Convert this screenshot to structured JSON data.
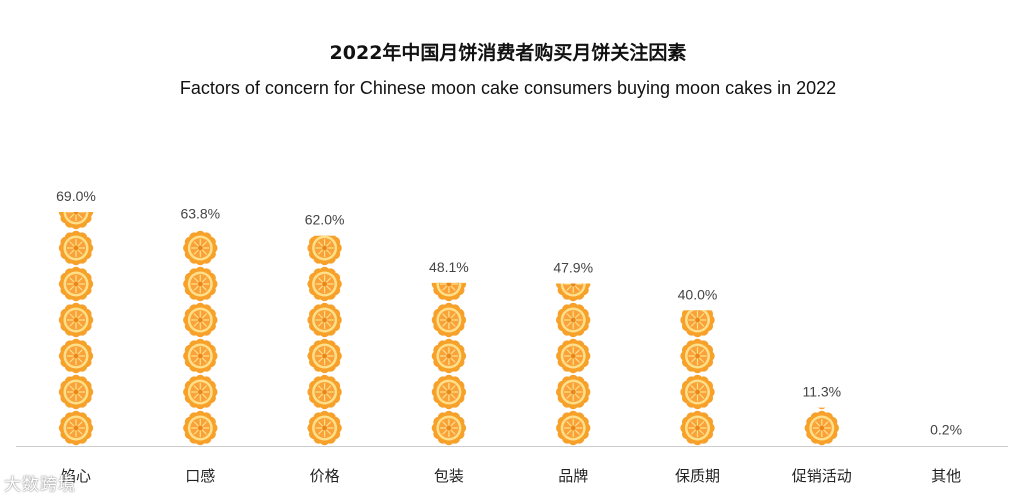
{
  "title": "2022年中国月饼消费者购买月饼关注因素",
  "subtitle": "Factors of concern for Chinese moon cake consumers buying moon cakes in 2022",
  "watermark": "大数跨境",
  "chart_data": {
    "type": "bar",
    "title": "2022年中国月饼消费者购买月饼关注因素",
    "subtitle": "Factors of concern for Chinese moon cake consumers buying moon cakes in 2022",
    "categories": [
      "馅心",
      "口感",
      "价格",
      "包装",
      "品牌",
      "保质期",
      "促销活动",
      "其他"
    ],
    "values": [
      69.0,
      63.8,
      62.0,
      48.1,
      47.9,
      40.0,
      11.3,
      0.2
    ],
    "value_labels": [
      "69.0%",
      "63.8%",
      "62.0%",
      "48.1%",
      "47.9%",
      "40.0%",
      "11.3%",
      "0.2%"
    ],
    "unit": "%",
    "ylim": [
      0,
      69
    ],
    "grid": false,
    "legend": "none",
    "mark": "moon-cake-icon",
    "colors": {
      "petal": "#F7A12B",
      "ring": "#FFE08A",
      "center": "#F9A23A",
      "accent": "#E8871A",
      "label": "#444444",
      "baseline": "#cccccc"
    }
  }
}
